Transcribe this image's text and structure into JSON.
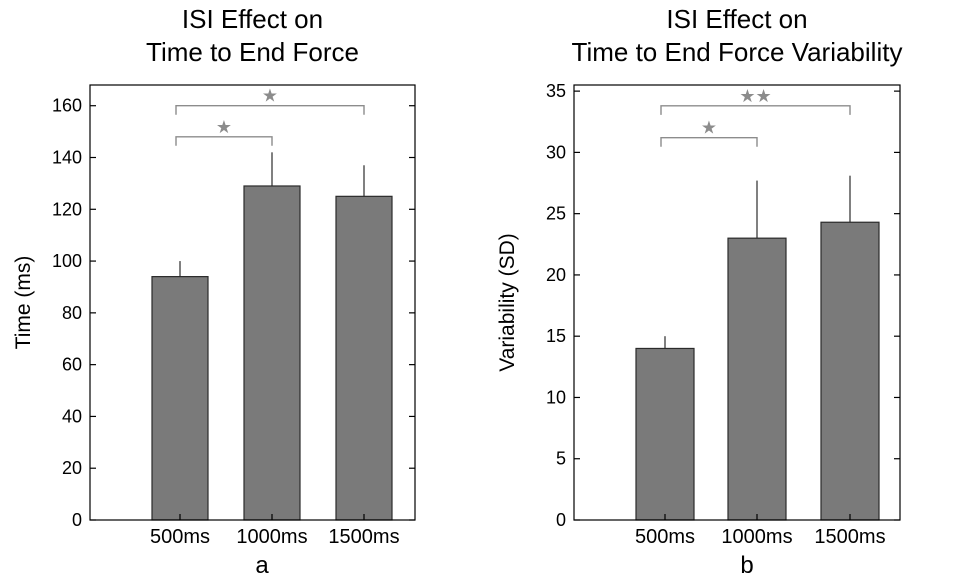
{
  "colors": {
    "bar_fill": "#7a7a7a",
    "bar_stroke": "#2b2b2b",
    "bracket": "#8c8c8c",
    "axis": "#000000"
  },
  "chart_data": [
    {
      "type": "bar",
      "title_lines": [
        "ISI Effect on",
        "Time to End Force"
      ],
      "ylabel": "Time (ms)",
      "xlabel": "a",
      "categories": [
        "500ms",
        "1000ms",
        "1500ms"
      ],
      "values": [
        94,
        129,
        125
      ],
      "errors": [
        6,
        13,
        12
      ],
      "ylim": [
        0,
        168
      ],
      "yticks": [
        0,
        20,
        40,
        60,
        80,
        100,
        120,
        140,
        160
      ],
      "grid": false,
      "significance": [
        {
          "from": 0,
          "to": 1,
          "y": 148,
          "label": "★"
        },
        {
          "from": 0,
          "to": 2,
          "y": 160,
          "label": "★"
        }
      ]
    },
    {
      "type": "bar",
      "title_lines": [
        "ISI Effect on",
        "Time to End Force Variability"
      ],
      "ylabel": "Variability (SD)",
      "xlabel": "b",
      "categories": [
        "500ms",
        "1000ms",
        "1500ms"
      ],
      "values": [
        14,
        23,
        24.3
      ],
      "errors": [
        1,
        4.7,
        3.8
      ],
      "ylim": [
        0,
        35.5
      ],
      "yticks": [
        0,
        5,
        10,
        15,
        20,
        25,
        30,
        35
      ],
      "grid": false,
      "significance": [
        {
          "from": 0,
          "to": 1,
          "y": 31.2,
          "label": "★"
        },
        {
          "from": 0,
          "to": 2,
          "y": 33.8,
          "label": "★★"
        }
      ]
    }
  ]
}
